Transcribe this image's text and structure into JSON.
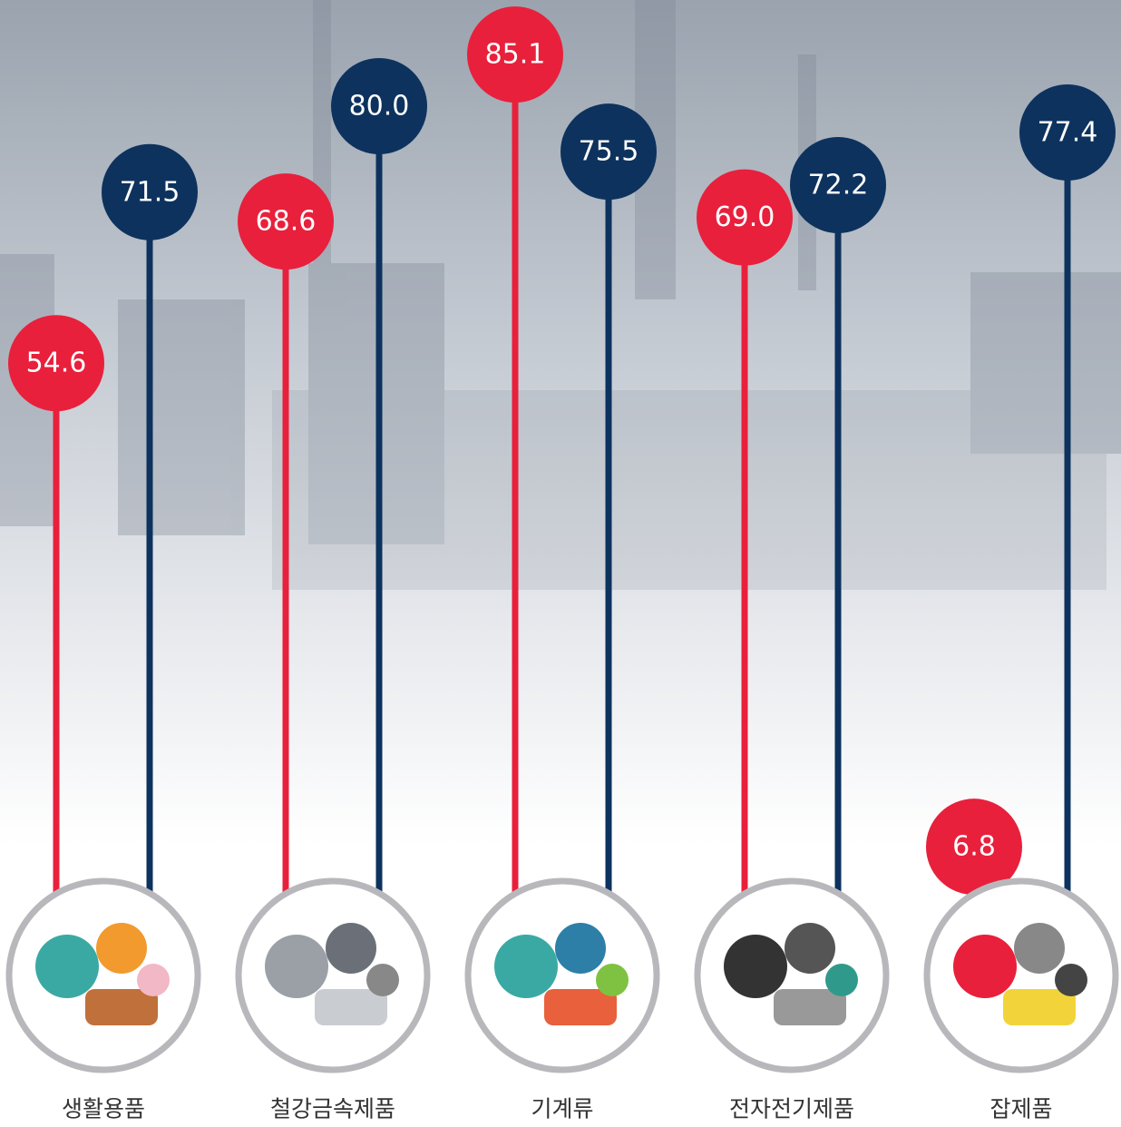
{
  "chart_data": {
    "type": "lollipop",
    "categories": [
      "생활용품",
      "철강금속제품",
      "기계류",
      "전자전기제품",
      "잡제품"
    ],
    "series": [
      {
        "color": "#e8203c",
        "values": [
          54.6,
          68.6,
          85.1,
          69.0,
          6.8
        ],
        "value_labels": [
          "54.6",
          "68.6",
          "85.1",
          "69.0",
          "6.8"
        ]
      },
      {
        "color": "#0d325e",
        "values": [
          71.5,
          80.0,
          75.5,
          72.2,
          77.4
        ],
        "value_labels": [
          "71.5",
          "80.0",
          "75.5",
          "72.2",
          "77.4"
        ]
      }
    ]
  }
}
